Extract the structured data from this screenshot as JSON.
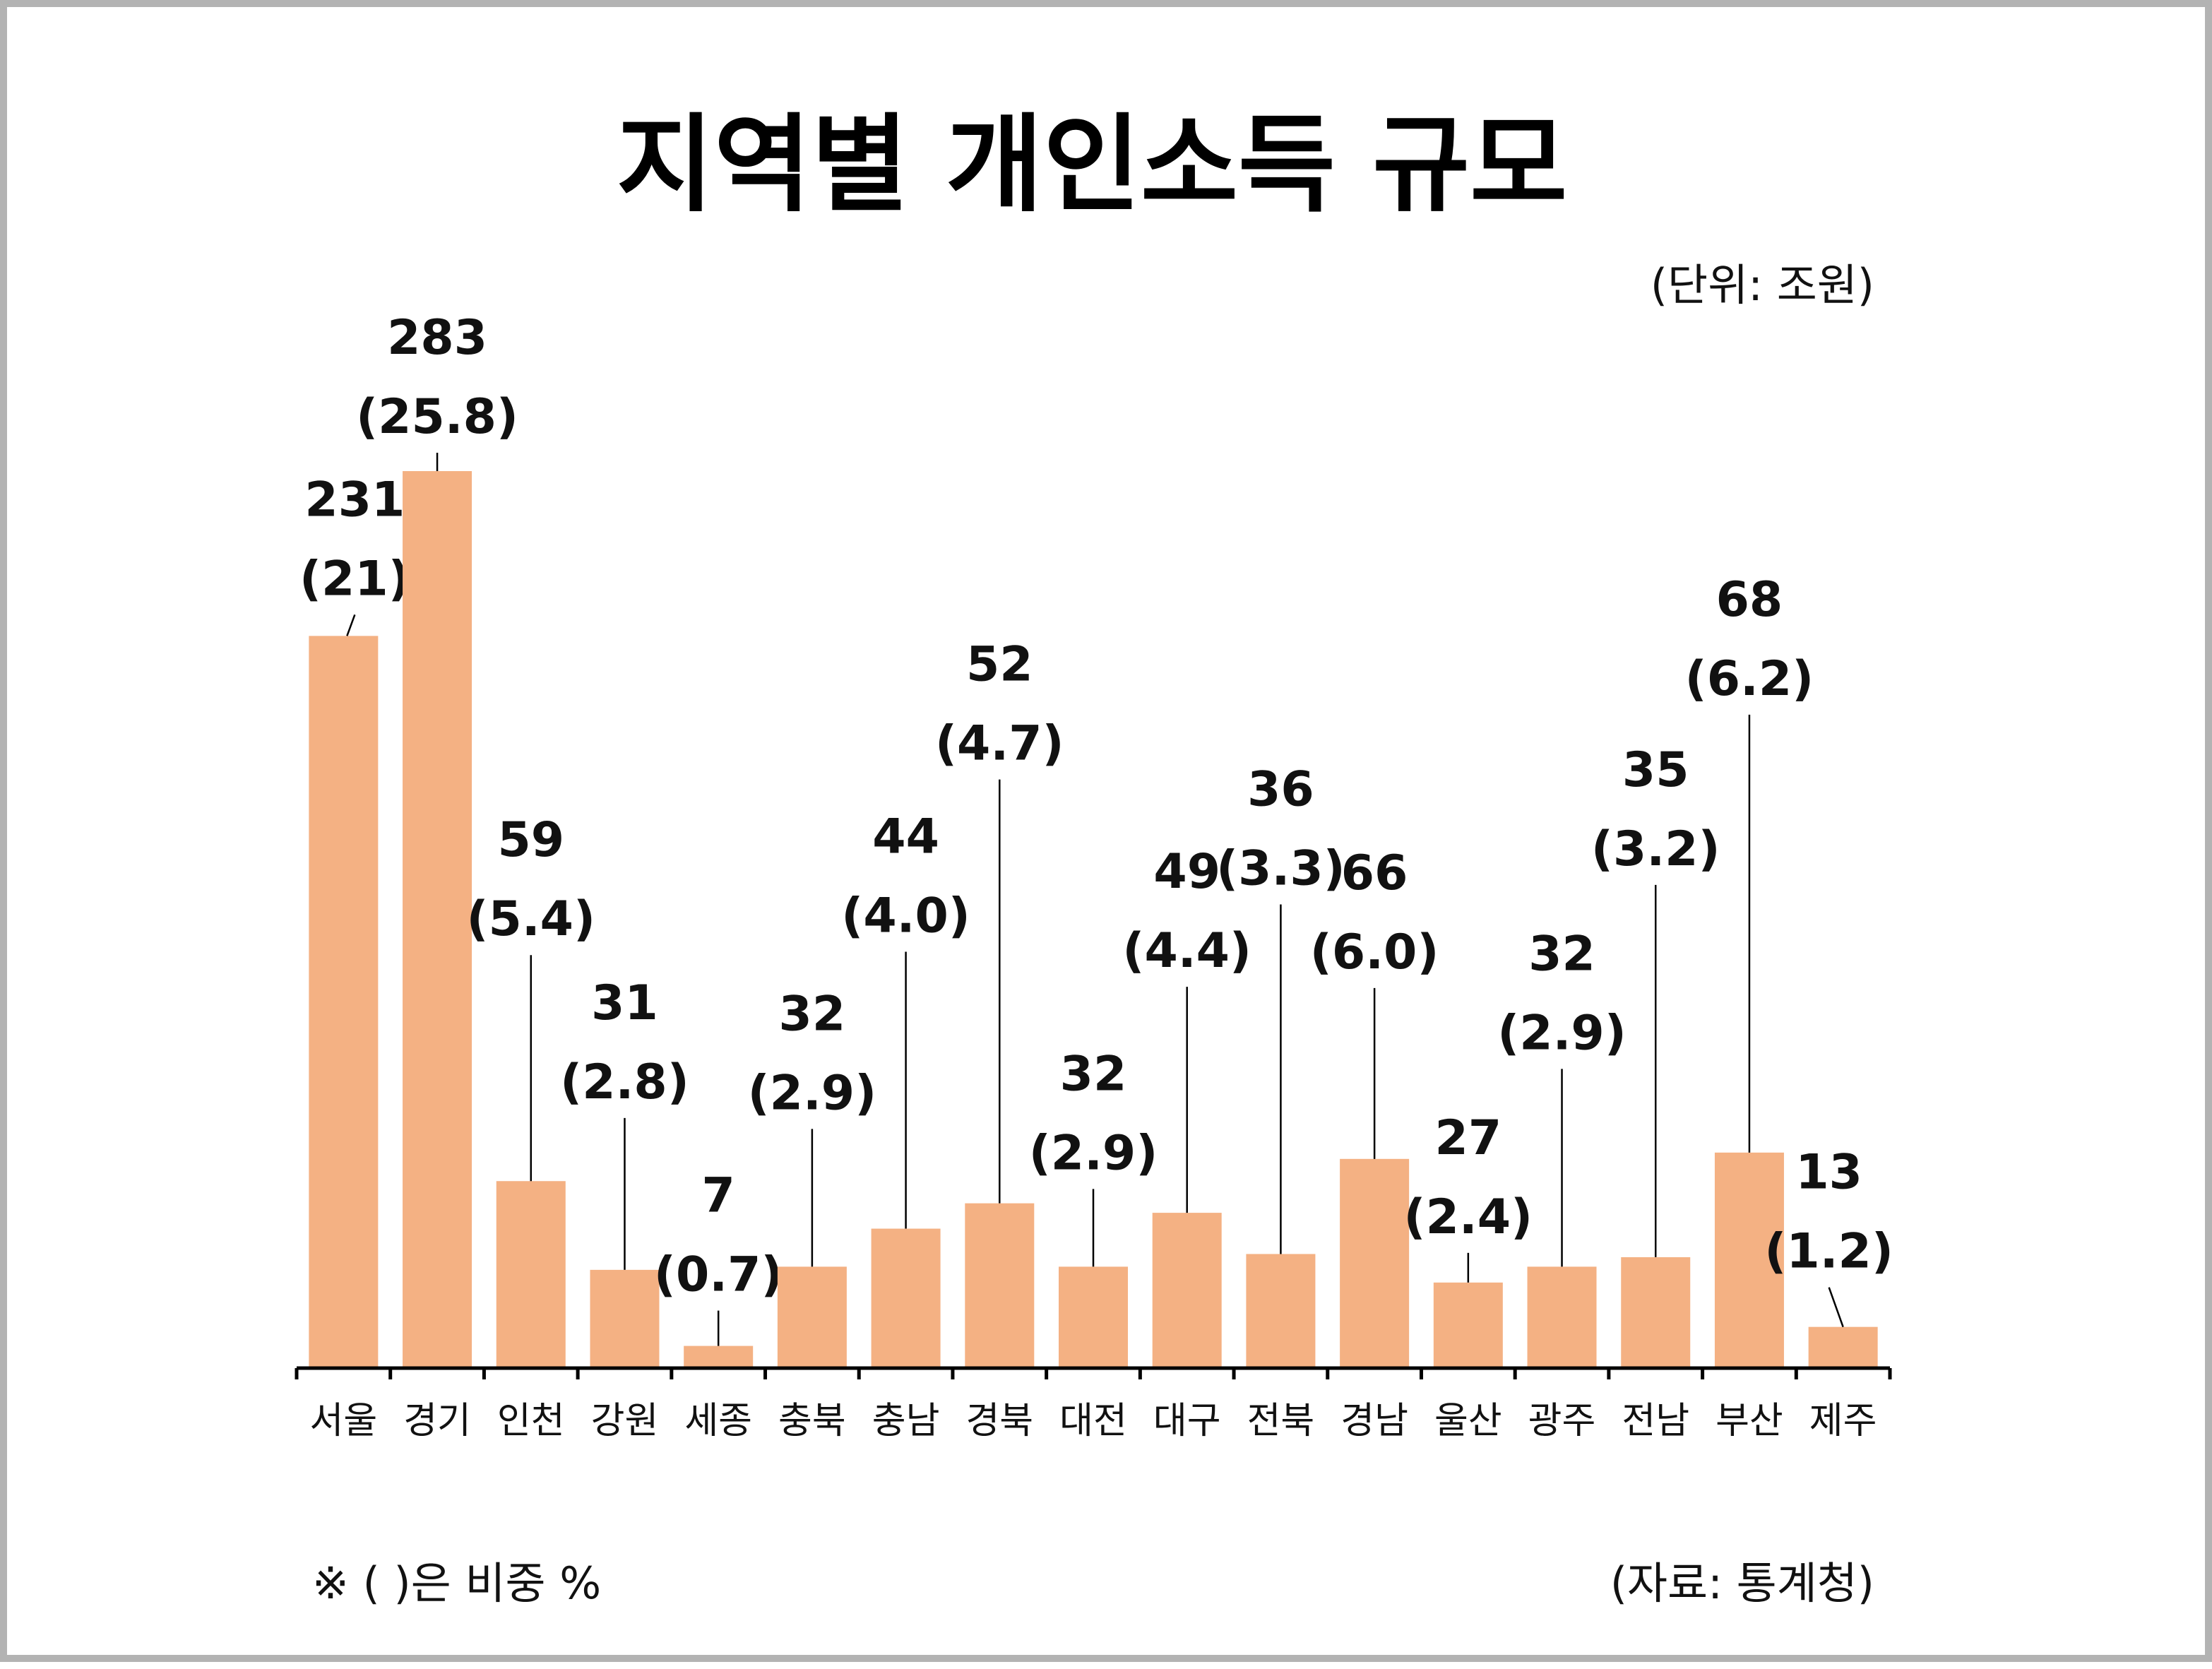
{
  "colors": {
    "bar": "#f4b183",
    "axis": "#000000",
    "leader": "#000000",
    "frame": "#b3b3b3"
  },
  "chart_data": {
    "type": "bar",
    "title": "지역별 개인소득 규모",
    "unit": "(단위: 조원)",
    "note": "※ ( )은 비중 %",
    "source": "(자료: 통계청)",
    "categories": [
      "서울",
      "경기",
      "인천",
      "강원",
      "세종",
      "충북",
      "충남",
      "경북",
      "대전",
      "대구",
      "전북",
      "경남",
      "울산",
      "광주",
      "전남",
      "부산",
      "제주"
    ],
    "values": [
      231,
      283,
      59,
      31,
      7,
      32,
      44,
      52,
      32,
      49,
      36,
      66,
      27,
      32,
      35,
      68,
      13
    ],
    "shares": [
      "21",
      "25.8",
      "5.4",
      "2.8",
      "0.7",
      "2.9",
      "4.0",
      "4.7",
      "2.9",
      "4.4",
      "3.3",
      "6.0",
      "2.4",
      "2.9",
      "3.2",
      "6.2",
      "1.2"
    ],
    "grid": false,
    "legend": "none"
  }
}
